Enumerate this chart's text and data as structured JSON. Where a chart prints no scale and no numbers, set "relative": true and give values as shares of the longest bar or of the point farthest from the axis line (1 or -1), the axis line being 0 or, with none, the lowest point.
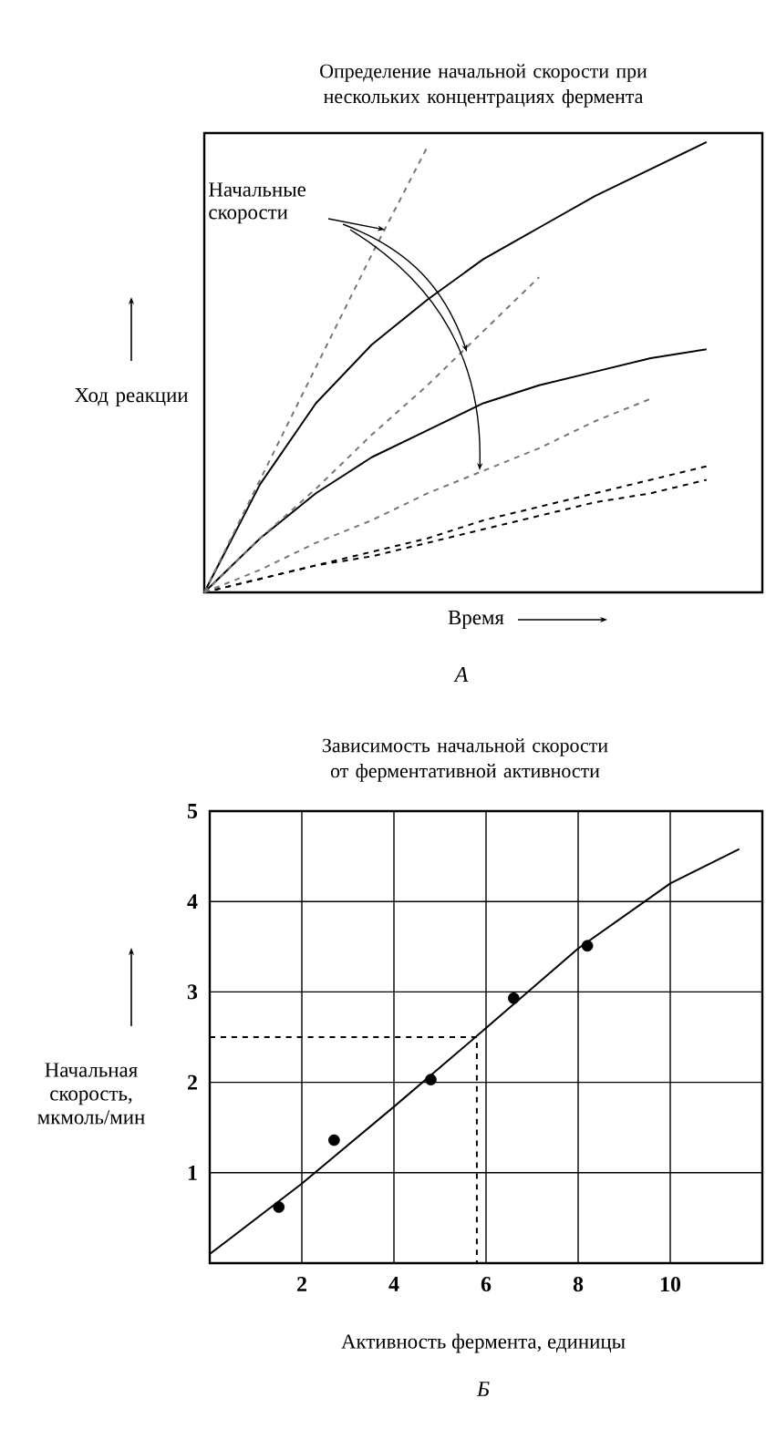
{
  "chart_data": [
    {
      "type": "line",
      "title": "Определение начальной скорости при нескольких концентрациях фермента",
      "xlabel": "Время",
      "ylabel": "Ход реакции",
      "annotations": [
        "Начальные скорости",
        "А"
      ],
      "relative": true,
      "categories": [
        null,
        null,
        null,
        null,
        null,
        null,
        null,
        null,
        null,
        null,
        null
      ],
      "series": [
        {
          "color": "#000000",
          "values": [
            0,
            0.24,
            0.42,
            0.55,
            0.65,
            0.74,
            0.81,
            0.88,
            0.94,
            1.0,
            null
          ]
        },
        {
          "color": "#000000",
          "values": [
            0,
            0.12,
            0.22,
            0.3,
            0.36,
            0.42,
            0.46,
            0.49,
            0.52,
            0.54,
            null
          ]
        },
        {
          "color": "#000000",
          "line_style": "dashed",
          "values": [
            0,
            0.03,
            0.06,
            0.09,
            0.12,
            0.16,
            0.19,
            0.22,
            0.25,
            0.28,
            null
          ]
        },
        {
          "color": "#000000",
          "line_style": "dashed",
          "values": [
            0,
            0.03,
            0.06,
            0.08,
            0.11,
            0.14,
            0.17,
            0.2,
            0.22,
            0.25,
            null
          ]
        },
        {
          "color": "#777777",
          "line_style": "dashed",
          "values": [
            0,
            0.25,
            0.5,
            0.75,
            0.99,
            null,
            null,
            null,
            null,
            null,
            null
          ]
        },
        {
          "color": "#777777",
          "line_style": "dashed",
          "values": [
            0,
            0.12,
            0.23,
            0.35,
            0.46,
            0.58,
            0.7,
            null,
            null,
            null,
            null
          ]
        },
        {
          "color": "#777777",
          "line_style": "dashed",
          "values": [
            0,
            0.05,
            0.11,
            0.16,
            0.22,
            0.27,
            0.32,
            0.38,
            0.43,
            null,
            null
          ]
        }
      ]
    },
    {
      "type": "scatter",
      "title": "Зависимость начальной скорости от ферментативной активности",
      "xlabel": "Активность фермента, единицы",
      "ylabel": "Начальная скорость, мкмоль/мин",
      "annotations": [
        "Б"
      ],
      "xlim": [
        0,
        12
      ],
      "ylim": [
        0,
        5
      ],
      "xticks": [
        2,
        4,
        6,
        8,
        10
      ],
      "yticks": [
        1,
        2,
        3,
        4,
        5
      ],
      "grid": true,
      "series": [
        {
          "x": [
            1.5,
            2.7,
            4.8,
            6.6,
            8.2
          ],
          "values": [
            0.62,
            1.36,
            2.03,
            2.93,
            3.51
          ],
          "color": "#000000",
          "marker": "circle"
        },
        {
          "type": "line",
          "x": [
            0,
            2,
            4,
            6,
            8,
            10,
            11.5
          ],
          "values": [
            0.1,
            0.88,
            1.73,
            2.6,
            3.48,
            4.2,
            4.58
          ],
          "color": "#000000",
          "marker": "none"
        },
        {
          "type": "line",
          "x": [
            0,
            5.8,
            5.8
          ],
          "values": [
            2.5,
            2.5,
            0
          ],
          "color": "#000000",
          "line_style": "dashed",
          "marker": "none"
        }
      ]
    }
  ]
}
